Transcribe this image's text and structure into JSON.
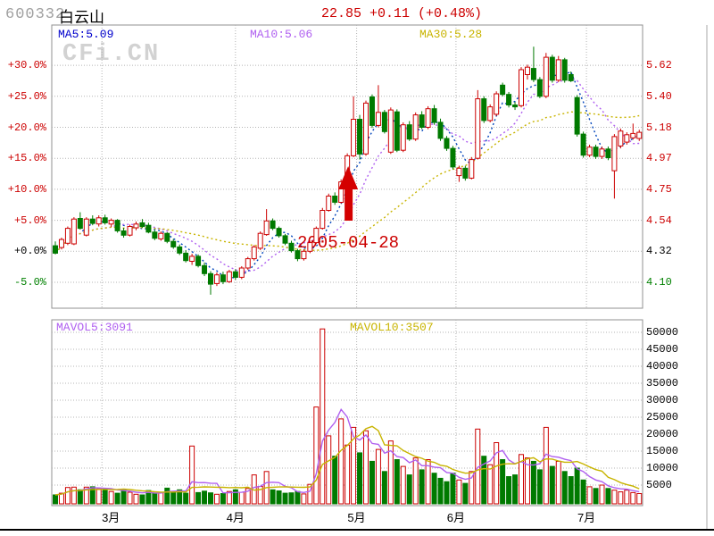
{
  "header": {
    "stock_code": "600332",
    "stock_name": "白云山",
    "quote": "22.85 +0.11 (+0.48%)"
  },
  "watermark": "CFi.CN",
  "price_panel": {
    "ma_labels": [
      {
        "text": "MA5:5.09",
        "color": "#0000cc"
      },
      {
        "text": "MA10:5.06",
        "color": "#b060f0"
      },
      {
        "text": "MA30:5.28",
        "color": "#c8b400"
      }
    ],
    "left_axis": [
      {
        "text": "+30.0%",
        "color": "#cc0000"
      },
      {
        "text": "+25.0%",
        "color": "#cc0000"
      },
      {
        "text": "+20.0%",
        "color": "#cc0000"
      },
      {
        "text": "+15.0%",
        "color": "#cc0000"
      },
      {
        "text": "+10.0%",
        "color": "#cc0000"
      },
      {
        "text": "+5.0%",
        "color": "#cc0000"
      },
      {
        "text": "+0.0%",
        "color": "#000000"
      },
      {
        "text": "-5.0%",
        "color": "#008000"
      }
    ],
    "right_axis": [
      {
        "text": "5.62",
        "color": "#cc0000"
      },
      {
        "text": "5.40",
        "color": "#cc0000"
      },
      {
        "text": "5.18",
        "color": "#cc0000"
      },
      {
        "text": "4.97",
        "color": "#cc0000"
      },
      {
        "text": "4.75",
        "color": "#cc0000"
      },
      {
        "text": "4.54",
        "color": "#cc0000"
      },
      {
        "text": "4.32",
        "color": "#000000"
      },
      {
        "text": "4.10",
        "color": "#008000"
      }
    ],
    "annotation": {
      "date": "2005-04-28"
    }
  },
  "volume_panel": {
    "mavol_labels": [
      {
        "text": "MAVOL5:3091",
        "color": "#b060f0"
      },
      {
        "text": "MAVOL10:3507",
        "color": "#c8b400"
      }
    ],
    "right_axis": [
      "50000",
      "45000",
      "40000",
      "35000",
      "30000",
      "25000",
      "20000",
      "15000",
      "10000",
      "5000"
    ]
  },
  "x_axis": {
    "months": [
      "3月",
      "4月",
      "5月",
      "6月",
      "7月"
    ]
  },
  "chart_data": {
    "type": "candlestick_with_volume",
    "title": "600332 白云山",
    "baseline_price": 4.32,
    "pct_gridlines": [
      30,
      25,
      20,
      15,
      10,
      5,
      0,
      -5
    ],
    "price_ticks": [
      5.62,
      5.4,
      5.18,
      4.97,
      4.75,
      4.54,
      4.32,
      4.1
    ],
    "volume_ticks": [
      50000,
      45000,
      40000,
      35000,
      30000,
      25000,
      20000,
      15000,
      10000,
      5000
    ],
    "month_marks": [
      {
        "label": "3月",
        "index": 7.5
      },
      {
        "label": "4月",
        "index": 29
      },
      {
        "label": "5月",
        "index": 48.5
      },
      {
        "label": "6月",
        "index": 64.5
      },
      {
        "label": "7月",
        "index": 85.5
      }
    ],
    "up_color": "#cc0000",
    "down_color": "#007a00",
    "ma_colors": {
      "ma5": "#0044bb",
      "ma10": "#b060f0",
      "ma30": "#c8b400"
    },
    "annotation": {
      "text": "2005-04-28",
      "arrow_candle_index": 47
    },
    "candles_ohlc_pct": [
      [
        0.9,
        1.6,
        -0.5,
        -0.3
      ],
      [
        0.6,
        2.2,
        0.3,
        1.9
      ],
      [
        1.3,
        4.0,
        1.0,
        3.7
      ],
      [
        1.2,
        5.5,
        1.0,
        5.2
      ],
      [
        5.3,
        6.3,
        3.5,
        3.7
      ],
      [
        2.6,
        5.5,
        2.4,
        5.2
      ],
      [
        5.2,
        5.8,
        4.2,
        4.5
      ],
      [
        4.4,
        5.8,
        4.0,
        5.4
      ],
      [
        5.4,
        5.9,
        4.3,
        4.6
      ],
      [
        4.4,
        5.3,
        3.9,
        5.0
      ],
      [
        5.0,
        5.2,
        3.0,
        3.3
      ],
      [
        3.3,
        3.8,
        2.2,
        2.6
      ],
      [
        2.6,
        4.3,
        2.4,
        4.0
      ],
      [
        3.8,
        4.8,
        3.4,
        4.4
      ],
      [
        4.6,
        5.2,
        3.8,
        4.0
      ],
      [
        4.2,
        4.6,
        2.9,
        3.1
      ],
      [
        3.1,
        3.4,
        1.8,
        2.1
      ],
      [
        2.0,
        3.2,
        1.7,
        2.9
      ],
      [
        2.9,
        3.1,
        1.3,
        1.6
      ],
      [
        1.6,
        2.0,
        0.4,
        0.7
      ],
      [
        0.7,
        1.1,
        -0.6,
        -0.3
      ],
      [
        -0.3,
        0.2,
        -1.8,
        -1.5
      ],
      [
        -1.6,
        -0.4,
        -2.2,
        -0.8
      ],
      [
        -0.8,
        -0.5,
        -2.6,
        -2.3
      ],
      [
        -2.3,
        -1.8,
        -4.0,
        -3.6
      ],
      [
        -3.6,
        -3.2,
        -7.0,
        -5.3
      ],
      [
        -5.2,
        -3.4,
        -5.6,
        -3.8
      ],
      [
        -3.8,
        -3.3,
        -5.3,
        -4.9
      ],
      [
        -4.9,
        -3.0,
        -5.1,
        -3.3
      ],
      [
        -3.3,
        -2.9,
        -4.6,
        -4.2
      ],
      [
        -4.2,
        -2.4,
        -4.5,
        -2.7
      ],
      [
        -2.7,
        -0.9,
        -3.0,
        -1.2
      ],
      [
        -1.2,
        1.0,
        -1.5,
        0.7
      ],
      [
        0.5,
        3.2,
        0.2,
        2.9
      ],
      [
        2.7,
        6.8,
        2.5,
        4.9
      ],
      [
        4.9,
        5.3,
        3.4,
        3.7
      ],
      [
        3.7,
        4.0,
        2.2,
        2.5
      ],
      [
        2.5,
        2.8,
        1.0,
        1.3
      ],
      [
        1.3,
        1.7,
        -0.2,
        0.1
      ],
      [
        0.1,
        0.4,
        -1.6,
        -1.2
      ],
      [
        -1.2,
        0.3,
        -1.5,
        0.0
      ],
      [
        0.0,
        1.7,
        -0.3,
        1.4
      ],
      [
        1.4,
        4.0,
        1.2,
        3.7
      ],
      [
        3.7,
        7.0,
        3.5,
        6.6
      ],
      [
        6.6,
        9.3,
        6.4,
        8.9
      ],
      [
        8.9,
        9.5,
        7.5,
        7.9
      ],
      [
        7.9,
        11.6,
        7.7,
        11.2
      ],
      [
        11.2,
        15.8,
        11.0,
        15.4
      ],
      [
        15.4,
        25.0,
        15.2,
        21.3
      ],
      [
        21.3,
        22.0,
        14.8,
        15.7
      ],
      [
        15.7,
        24.3,
        15.4,
        23.9
      ],
      [
        24.9,
        25.3,
        19.9,
        20.3
      ],
      [
        20.3,
        26.8,
        20.0,
        22.4
      ],
      [
        22.4,
        22.8,
        19.0,
        19.3
      ],
      [
        16.0,
        23.2,
        15.7,
        22.8
      ],
      [
        22.5,
        22.9,
        16.0,
        16.3
      ],
      [
        16.3,
        20.8,
        16.0,
        20.4
      ],
      [
        20.4,
        21.0,
        17.8,
        18.1
      ],
      [
        18.1,
        22.4,
        17.8,
        22.0
      ],
      [
        22.0,
        22.6,
        19.7,
        20.0
      ],
      [
        20.0,
        23.4,
        19.7,
        23.0
      ],
      [
        23.0,
        23.6,
        20.4,
        20.8
      ],
      [
        20.8,
        21.4,
        17.8,
        18.2
      ],
      [
        18.2,
        18.6,
        16.2,
        16.6
      ],
      [
        16.6,
        17.0,
        13.2,
        13.6
      ],
      [
        12.2,
        13.8,
        11.2,
        13.4
      ],
      [
        13.4,
        13.8,
        11.4,
        11.8
      ],
      [
        11.8,
        15.2,
        11.6,
        14.8
      ],
      [
        15.0,
        26.0,
        14.8,
        24.6
      ],
      [
        24.6,
        25.0,
        20.7,
        21.1
      ],
      [
        21.1,
        23.7,
        20.8,
        23.3
      ],
      [
        22.1,
        25.8,
        21.8,
        25.4
      ],
      [
        26.8,
        27.2,
        25.0,
        25.3
      ],
      [
        25.3,
        25.7,
        23.2,
        23.6
      ],
      [
        23.6,
        24.1,
        22.8,
        23.3
      ],
      [
        23.5,
        29.7,
        23.2,
        29.3
      ],
      [
        28.5,
        30.1,
        27.7,
        29.7
      ],
      [
        29.5,
        33.0,
        27.3,
        27.7
      ],
      [
        27.7,
        28.1,
        24.7,
        25.0
      ],
      [
        25.0,
        32.0,
        24.7,
        31.3
      ],
      [
        31.3,
        31.7,
        27.2,
        27.6
      ],
      [
        27.6,
        31.5,
        27.3,
        30.9
      ],
      [
        30.9,
        31.2,
        27.2,
        27.6
      ],
      [
        28.5,
        29.0,
        27.3,
        27.5
      ],
      [
        24.8,
        25.2,
        18.5,
        18.9
      ],
      [
        18.9,
        19.3,
        15.1,
        15.5
      ],
      [
        15.5,
        17.2,
        15.2,
        16.8
      ],
      [
        16.8,
        17.2,
        14.9,
        15.3
      ],
      [
        15.3,
        16.9,
        14.9,
        16.5
      ],
      [
        16.5,
        16.9,
        14.7,
        15.1
      ],
      [
        13.0,
        18.9,
        8.5,
        18.5
      ],
      [
        17.0,
        19.8,
        16.6,
        19.4
      ],
      [
        17.6,
        19.2,
        17.2,
        18.8
      ],
      [
        18.3,
        20.6,
        18.0,
        19.0
      ],
      [
        18.2,
        19.6,
        17.8,
        19.2
      ]
    ],
    "volumes": [
      2100,
      2600,
      4300,
      4400,
      3600,
      4400,
      4500,
      3900,
      3800,
      3100,
      2600,
      3600,
      2900,
      2300,
      2100,
      3400,
      2600,
      2900,
      4100,
      3100,
      3600,
      2600,
      16500,
      2800,
      3200,
      2700,
      2300,
      2500,
      3100,
      3600,
      2900,
      4000,
      8000,
      4600,
      9000,
      3600,
      3300,
      2600,
      2700,
      3100,
      2400,
      5200,
      28000,
      51000,
      19500,
      13500,
      24500,
      16800,
      22000,
      14500,
      21000,
      12000,
      15500,
      9000,
      18000,
      12500,
      10500,
      8000,
      13000,
      9500,
      12500,
      8500,
      7000,
      6000,
      8500,
      6500,
      5500,
      9000,
      21500,
      13500,
      11000,
      17500,
      12500,
      7500,
      8000,
      14000,
      13000,
      12000,
      9500,
      22000,
      10500,
      12000,
      9000,
      7500,
      10000,
      6500,
      4500,
      4000,
      5000,
      4000,
      3500,
      3000,
      3500,
      2800,
      2500
    ]
  }
}
